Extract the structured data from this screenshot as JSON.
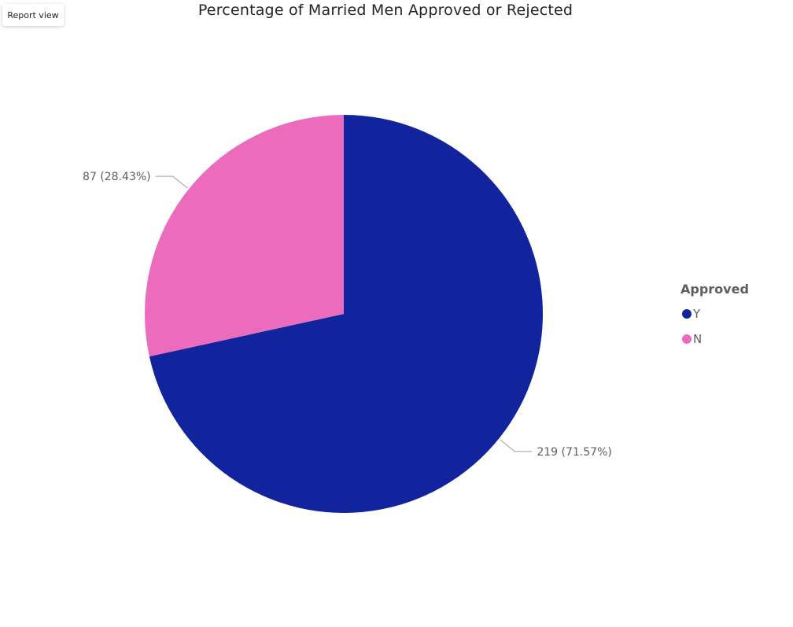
{
  "toolbar": {
    "report_view_label": "Report view"
  },
  "chart_data": {
    "type": "pie",
    "title": "Percentage of Married Men Approved or Rejected",
    "legend_title": "Approved",
    "legend_position": "right",
    "slices": [
      {
        "name": "Y",
        "value": 219,
        "percent": 71.57,
        "label": "219 (71.57%)",
        "color": "#12239e"
      },
      {
        "name": "N",
        "value": 87,
        "percent": 28.43,
        "label": "87 (28.43%)",
        "color": "#eb6bbc"
      }
    ]
  }
}
